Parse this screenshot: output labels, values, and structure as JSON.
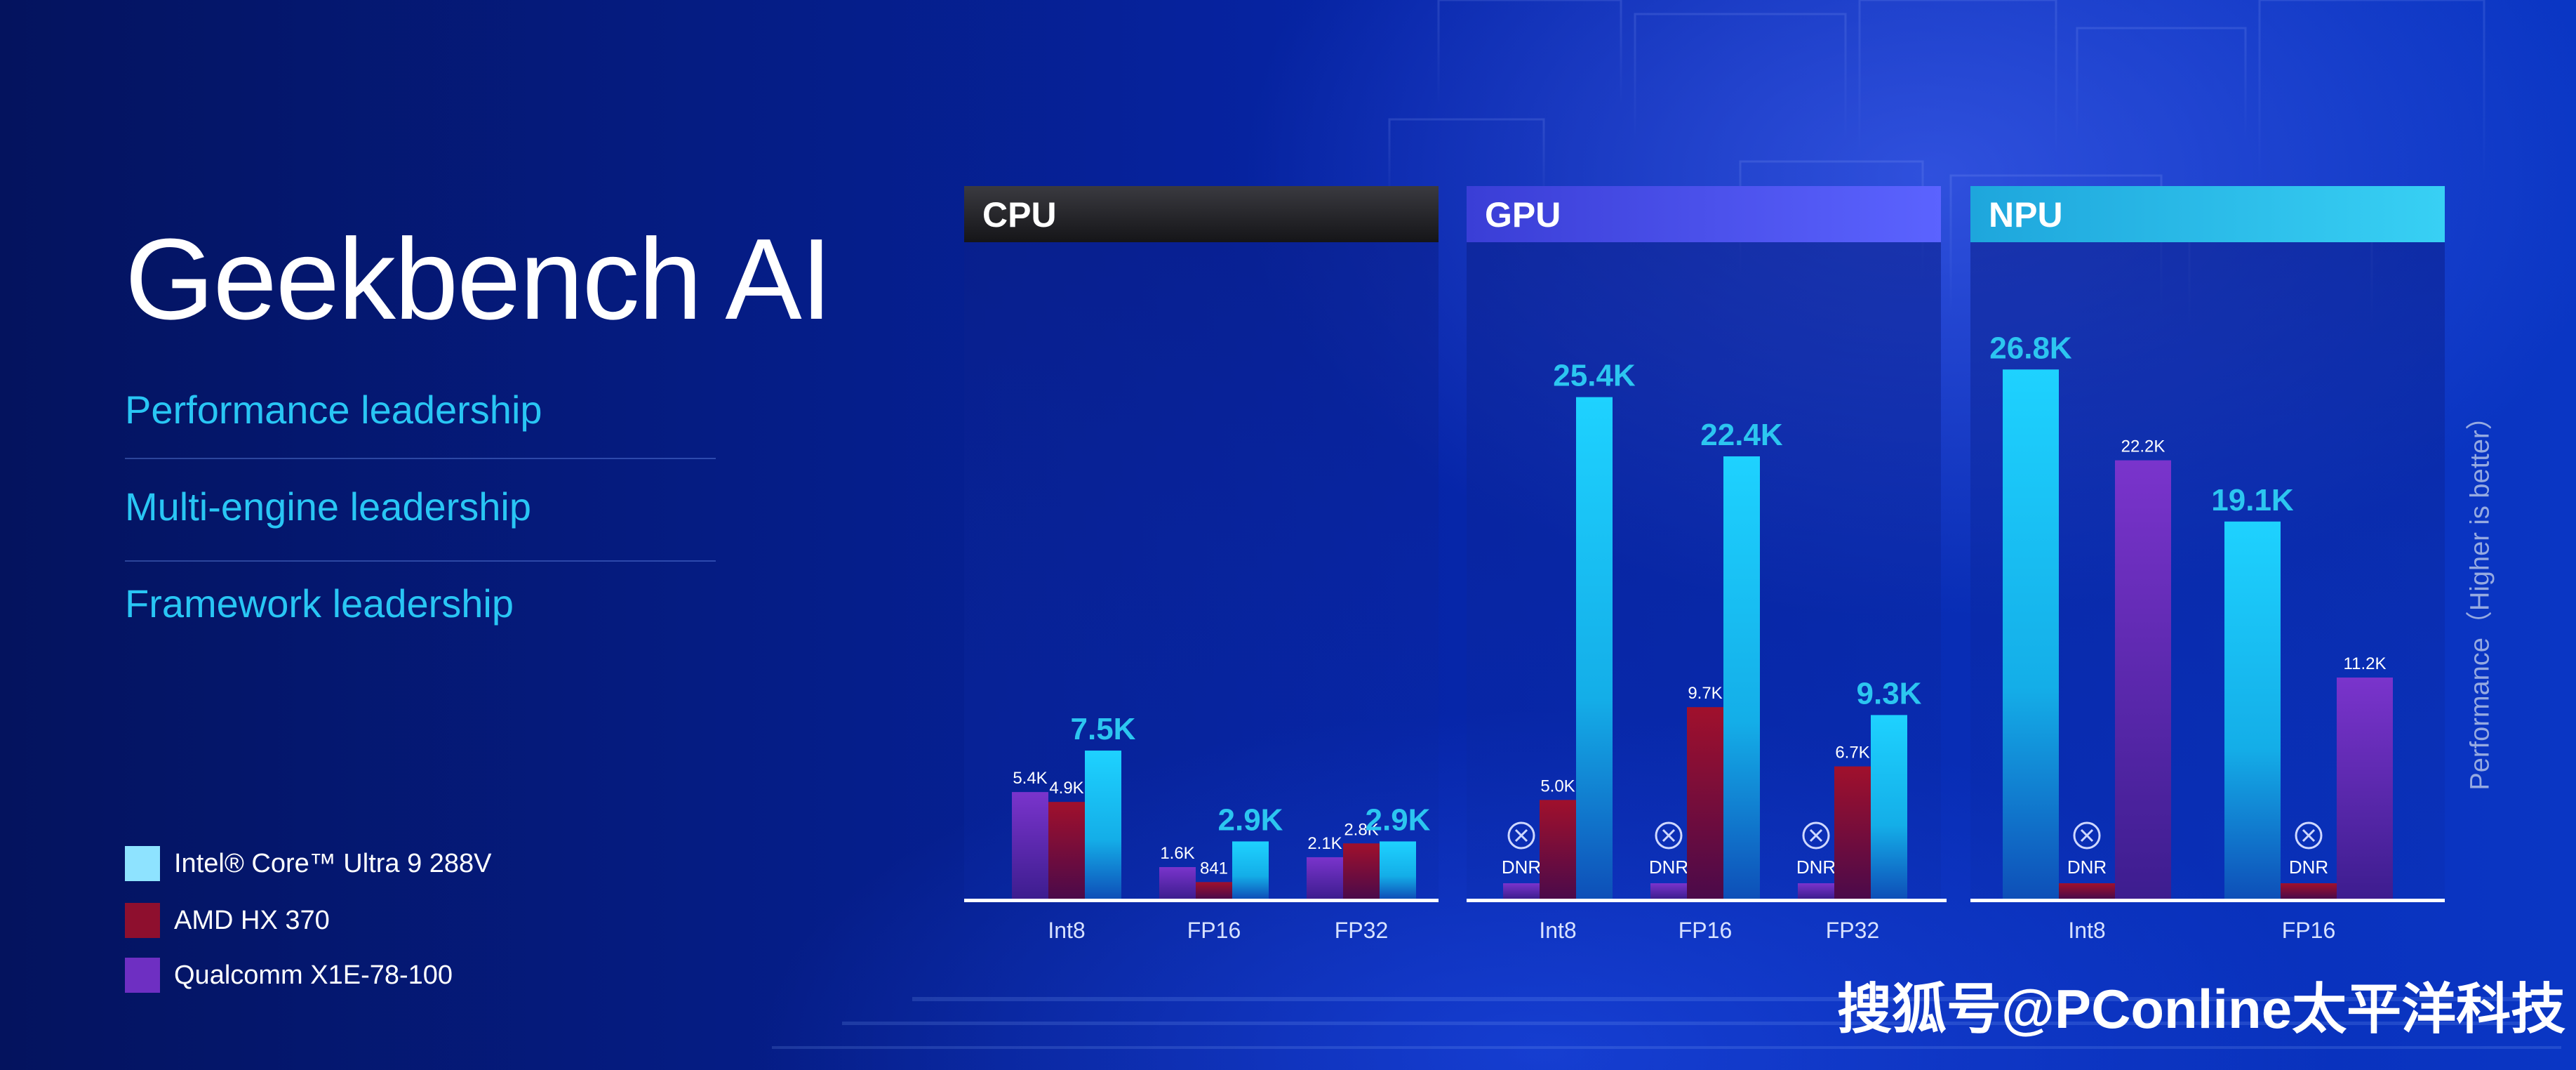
{
  "page": {
    "title": "Geekbench AI",
    "subtitles": [
      "Performance leadership",
      "Multi-engine leadership",
      "Framework leadership"
    ],
    "axis_note": "Performance（Higher is better）",
    "watermark": "搜狐号@PConline太平洋科技"
  },
  "legend": [
    {
      "label": "Intel® Core™ Ultra 9 288V",
      "color": "#2cc6f0"
    },
    {
      "label": "AMD HX 370",
      "color": "#8e0f2e"
    },
    {
      "label": "Qualcomm X1E-78-100",
      "color": "#6e2fc2"
    }
  ],
  "chart_data": [
    {
      "type": "bar",
      "title": "CPU",
      "categories": [
        "Int8",
        "FP16",
        "FP32"
      ],
      "series": [
        {
          "name": "Qualcomm X1E-78-100",
          "values": [
            5400,
            1600,
            2100
          ],
          "labels": [
            "5.4K",
            "1.6K",
            "2.1K"
          ],
          "dnr": [
            false,
            false,
            false
          ]
        },
        {
          "name": "AMD HX 370",
          "values": [
            4900,
            841,
            2800
          ],
          "labels": [
            "4.9K",
            "841",
            "2.8K"
          ],
          "dnr": [
            false,
            false,
            false
          ]
        },
        {
          "name": "Intel® Core™ Ultra 9 288V",
          "values": [
            7500,
            2900,
            2900
          ],
          "labels": [
            "7.5K",
            "2.9K",
            "2.9K"
          ],
          "dnr": [
            false,
            false,
            false
          ]
        }
      ],
      "ylim": [
        0,
        32000
      ],
      "header_color": "#2a2a2e"
    },
    {
      "type": "bar",
      "title": "GPU",
      "categories": [
        "Int8",
        "FP16",
        "FP32"
      ],
      "series": [
        {
          "name": "Qualcomm X1E-78-100",
          "values": [
            0,
            0,
            0
          ],
          "labels": [
            "DNR",
            "DNR",
            "DNR"
          ],
          "dnr": [
            true,
            true,
            true
          ]
        },
        {
          "name": "AMD HX 370",
          "values": [
            5000,
            9700,
            6700
          ],
          "labels": [
            "5.0K",
            "9.7K",
            "6.7K"
          ],
          "dnr": [
            false,
            false,
            false
          ]
        },
        {
          "name": "Intel® Core™ Ultra 9 288V",
          "values": [
            25400,
            22400,
            9300
          ],
          "labels": [
            "25.4K",
            "22.4K",
            "9.3K"
          ],
          "dnr": [
            false,
            false,
            false
          ]
        }
      ],
      "ylim": [
        0,
        32000
      ],
      "header_color": "#4a52e8"
    },
    {
      "type": "bar",
      "title": "NPU",
      "categories": [
        "Int8",
        "FP16"
      ],
      "series": [
        {
          "name": "Intel® Core™ Ultra 9 288V",
          "values": [
            26800,
            19100
          ],
          "labels": [
            "26.8K",
            "19.1K"
          ],
          "dnr": [
            false,
            false
          ]
        },
        {
          "name": "AMD HX 370",
          "values": [
            0,
            0
          ],
          "labels": [
            "DNR",
            "DNR"
          ],
          "dnr": [
            true,
            true
          ]
        },
        {
          "name": "Qualcomm X1E-78-100",
          "values": [
            22200,
            11200
          ],
          "labels": [
            "22.2K",
            "11.2K"
          ],
          "dnr": [
            false,
            false
          ]
        }
      ],
      "ylim": [
        0,
        32000
      ],
      "header_color": "#1fb6e6"
    }
  ]
}
